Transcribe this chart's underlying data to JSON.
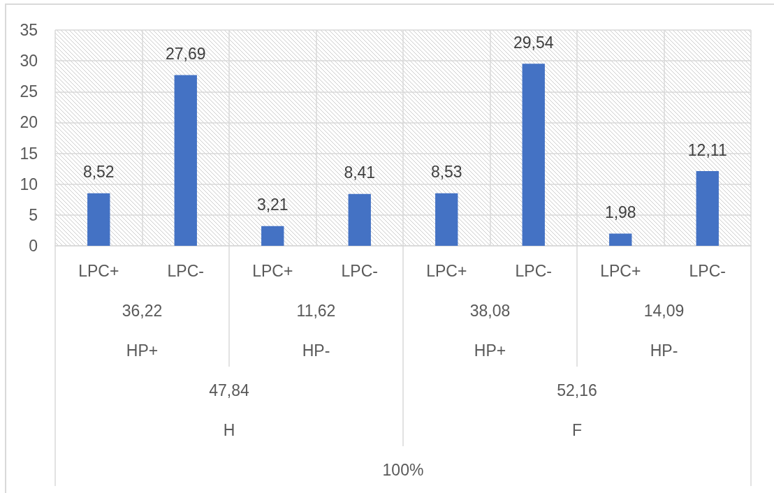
{
  "chart_data": {
    "type": "bar",
    "categories": [
      "LPC+",
      "LPC-",
      "LPC+",
      "LPC-",
      "LPC+",
      "LPC-",
      "LPC+",
      "LPC-"
    ],
    "values": [
      8.52,
      27.69,
      3.21,
      8.41,
      8.53,
      29.54,
      1.98,
      12.11
    ],
    "color": "#4472c4",
    "value_labels": [
      "8,52",
      "27,69",
      "3,21",
      "8,41",
      "8,53",
      "29,54",
      "1,98",
      "12,11"
    ],
    "ylim": [
      0,
      35
    ],
    "yticks": [
      0,
      5,
      10,
      15,
      20,
      25,
      30,
      35
    ],
    "grid": true,
    "annotations": [
      "36,22",
      "11,62",
      "38,08",
      "14,09",
      "HP+",
      "HP-",
      "HP+",
      "HP-",
      "47,84",
      "52,16",
      "H",
      "F",
      "100%"
    ]
  }
}
